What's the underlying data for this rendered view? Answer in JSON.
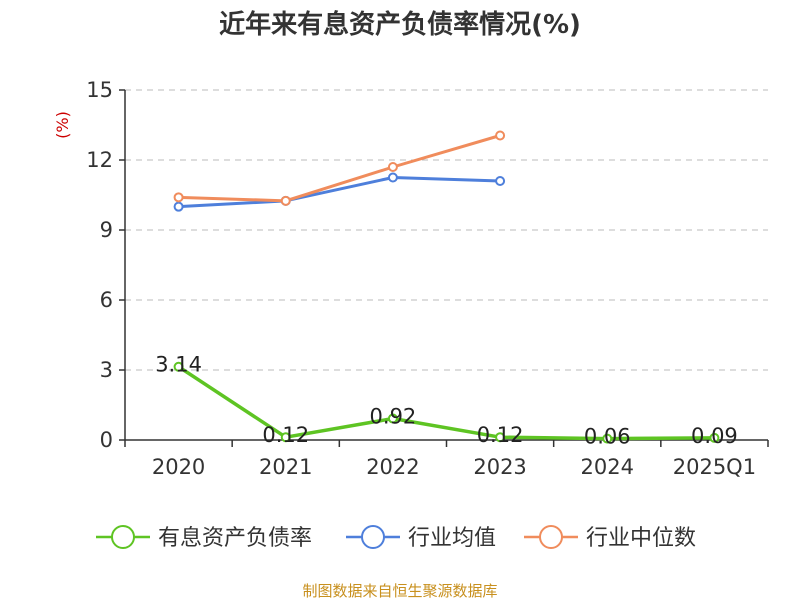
{
  "chart_data": {
    "type": "line",
    "title": "近年来有息资产负债率情况(%)",
    "ylabel": "(%)",
    "categories": [
      "2020",
      "2021",
      "2022",
      "2023",
      "2024",
      "2025Q1"
    ],
    "ylim": [
      0,
      15
    ],
    "yticks": [
      "0",
      "3",
      "6",
      "9",
      "12",
      "15"
    ],
    "grid": true,
    "legend": "bottom",
    "series": [
      {
        "name": "有息资产负债率",
        "color": "#5ec423",
        "values": [
          3.14,
          0.12,
          0.92,
          0.12,
          0.06,
          0.09
        ],
        "labels": [
          "3.14",
          "0.12",
          "0.92",
          "0.12",
          "0.06",
          "0.09"
        ]
      },
      {
        "name": "行业均值",
        "color": "#4e7fdb",
        "values": [
          10.0,
          10.25,
          11.25,
          11.1,
          null,
          null
        ]
      },
      {
        "name": "行业中位数",
        "color": "#f08c5c",
        "values": [
          10.4,
          10.25,
          11.7,
          13.05,
          null,
          null
        ]
      }
    ],
    "source": "制图数据来自恒生聚源数据库"
  }
}
